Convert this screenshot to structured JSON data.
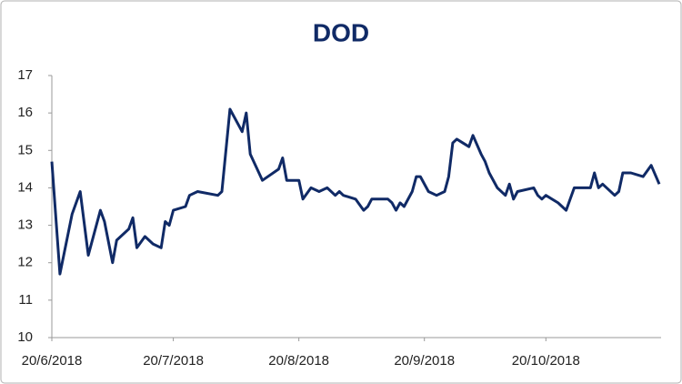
{
  "chart_data": {
    "type": "line",
    "title": "DOD",
    "color": "#102a66",
    "x": [
      "20/6/2018",
      "22/6/2018",
      "25/6/2018",
      "27/6/2018",
      "29/6/2018",
      "2/7/2018",
      "3/7/2018",
      "5/7/2018",
      "6/7/2018",
      "9/7/2018",
      "10/7/2018",
      "11/7/2018",
      "13/7/2018",
      "15/7/2018",
      "17/7/2018",
      "18/7/2018",
      "19/7/2018",
      "20/7/2018",
      "23/7/2018",
      "24/7/2018",
      "26/7/2018",
      "31/7/2018",
      "1/8/2018",
      "3/8/2018",
      "6/8/2018",
      "7/8/2018",
      "8/8/2018",
      "11/8/2018",
      "15/8/2018",
      "16/8/2018",
      "17/8/2018",
      "20/8/2018",
      "21/8/2018",
      "23/8/2018",
      "25/8/2018",
      "27/8/2018",
      "29/8/2018",
      "30/8/2018",
      "31/8/2018",
      "3/9/2018",
      "5/9/2018",
      "6/9/2018",
      "7/9/2018",
      "11/9/2018",
      "12/9/2018",
      "13/9/2018",
      "14/9/2018",
      "15/9/2018",
      "17/9/2018",
      "18/9/2018",
      "19/9/2018",
      "21/9/2018",
      "23/9/2018",
      "25/9/2018",
      "26/9/2018",
      "27/9/2018",
      "28/9/2018",
      "1/10/2018",
      "2/10/2018",
      "4/10/2018",
      "5/10/2018",
      "6/10/2018",
      "8/10/2018",
      "10/10/2018",
      "11/10/2018",
      "12/10/2018",
      "13/10/2018",
      "17/10/2018",
      "18/10/2018",
      "19/10/2018",
      "20/10/2018",
      "23/10/2018",
      "25/10/2018",
      "27/10/2018",
      "31/10/2018",
      "1/11/2018",
      "2/11/2018",
      "3/11/2018",
      "6/11/2018",
      "7/11/2018",
      "8/11/2018",
      "10/11/2018",
      "13/11/2018",
      "15/11/2018",
      "17/11/2018"
    ],
    "values": [
      14.7,
      11.7,
      13.3,
      13.9,
      12.2,
      13.4,
      13.1,
      12.0,
      12.6,
      12.9,
      13.2,
      12.4,
      12.7,
      12.5,
      12.4,
      13.1,
      13.0,
      13.4,
      13.5,
      13.8,
      13.9,
      13.8,
      13.9,
      16.1,
      15.5,
      16.0,
      14.9,
      14.2,
      14.5,
      14.8,
      14.2,
      14.2,
      13.7,
      14.0,
      13.9,
      14.0,
      13.8,
      13.9,
      13.8,
      13.7,
      13.4,
      13.5,
      13.7,
      13.7,
      13.6,
      13.4,
      13.6,
      13.5,
      13.9,
      14.3,
      14.3,
      13.9,
      13.8,
      13.9,
      14.3,
      15.2,
      15.3,
      15.1,
      15.4,
      14.9,
      14.7,
      14.4,
      14.0,
      13.8,
      14.1,
      13.7,
      13.9,
      14.0,
      13.8,
      13.7,
      13.8,
      13.6,
      13.4,
      14.0,
      14.0,
      14.4,
      14.0,
      14.1,
      13.8,
      13.9,
      14.4,
      14.4,
      14.3,
      14.6,
      14.1
    ],
    "xlim": [
      "20/6/2018",
      "17/11/2018"
    ],
    "xticks": [
      "20/6/2018",
      "20/7/2018",
      "20/8/2018",
      "20/9/2018",
      "20/10/2018"
    ],
    "ylim": [
      10,
      17
    ],
    "yticks": [
      10,
      11,
      12,
      13,
      14,
      15,
      16,
      17
    ]
  }
}
